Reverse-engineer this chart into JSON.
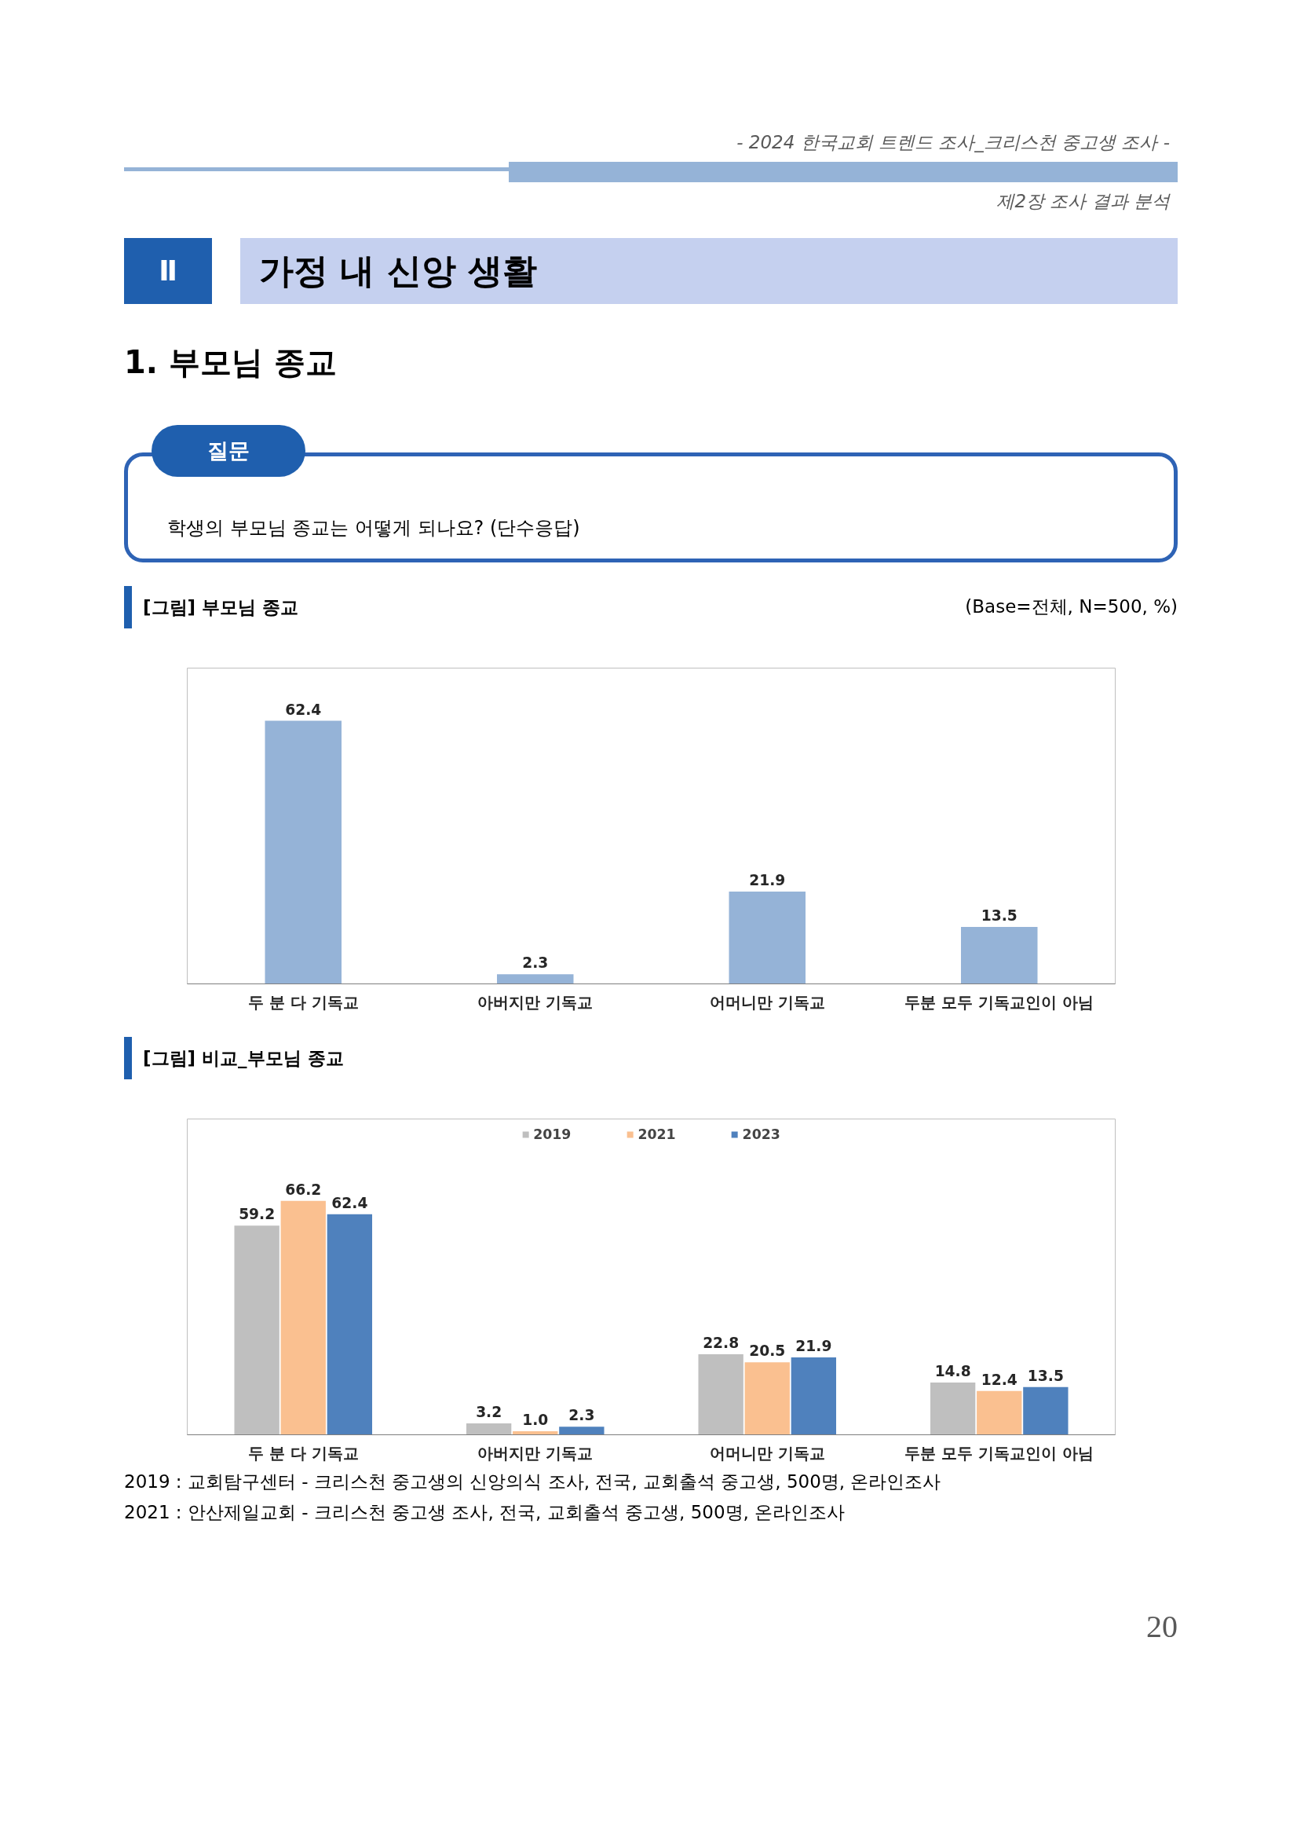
{
  "chart_data": [
    {
      "type": "bar",
      "title": "[그림] 부모님 종교",
      "subtitle": "(Base=전체, N=500, %)",
      "annotations": [
        "- 2024 한국교회 트렌드 조사_크리스천 중고생 조사 -",
        "제2장 조사 결과 분석",
        "Ⅱ",
        "가정 내 신앙 생활",
        "1. 부모님 종교",
        "질문",
        "학생의 부모님 종교는 어떻게 되나요? (단수응답)"
      ],
      "categories": [
        "두 분 다 기독교",
        "아버지만 기독교",
        "어머니만 기독교",
        "두분 모두 기독교인이 아님"
      ],
      "values": [
        62.4,
        2.3,
        21.9,
        13.5
      ],
      "color": "#95b3d7",
      "data_labels": true,
      "grid": false,
      "legend": false
    },
    {
      "type": "bar",
      "title": "[그림] 비교_부모님 종교",
      "annotations": [
        "2019 : 교회탐구센터 - 크리스천 중고생의 신앙의식 조사, 전국, 교회출석 중고생, 500명, 온라인조사",
        "2021 : 안산제일교회 - 크리스천 중고생 조사, 전국, 교회출석 중고생, 500명, 온라인조사",
        "20"
      ],
      "categories": [
        "두 분 다 기독교",
        "아버지만 기독교",
        "어머니만 기독교",
        "두분 모두 기독교인이 아님"
      ],
      "series": [
        {
          "name": "2019",
          "color": "#bfbfbf",
          "values": [
            59.2,
            3.2,
            22.8,
            14.8
          ],
          "value_labels": [
            "59.2",
            "3.2",
            "22.8",
            "14.8"
          ]
        },
        {
          "name": "2021",
          "color": "#fac090",
          "values": [
            66.2,
            1.0,
            20.5,
            12.4
          ],
          "value_labels": [
            "66.2",
            "1.0",
            "20.5",
            "12.4"
          ]
        },
        {
          "name": "2023",
          "color": "#4f81bd",
          "values": [
            62.4,
            2.3,
            21.9,
            13.5
          ],
          "value_labels": [
            "62.4",
            "2.3",
            "21.9",
            "13.5"
          ]
        }
      ],
      "grid": false,
      "legend": "top"
    }
  ]
}
